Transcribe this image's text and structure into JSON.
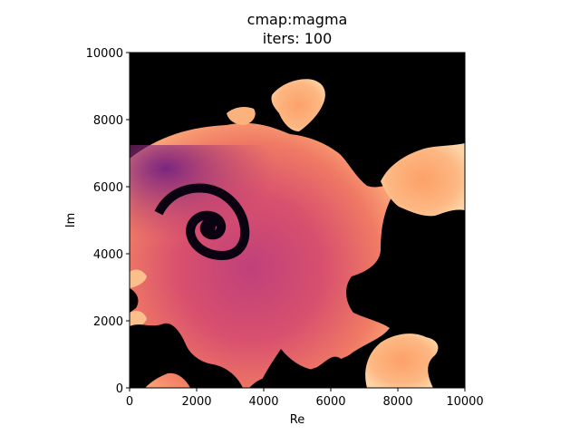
{
  "chart_data": {
    "type": "heatmap",
    "title_lines": [
      "cmap:magma",
      "iters: 100"
    ],
    "xlabel": "Re",
    "ylabel": "Im",
    "xlim": [
      0,
      10000
    ],
    "ylim": [
      0,
      10000
    ],
    "x_ticks": [
      0,
      2000,
      4000,
      6000,
      8000,
      10000
    ],
    "y_ticks": [
      0,
      2000,
      4000,
      6000,
      8000,
      10000
    ],
    "colormap": "magma",
    "max_iterations": 100,
    "grid": false,
    "legend": "none"
  }
}
